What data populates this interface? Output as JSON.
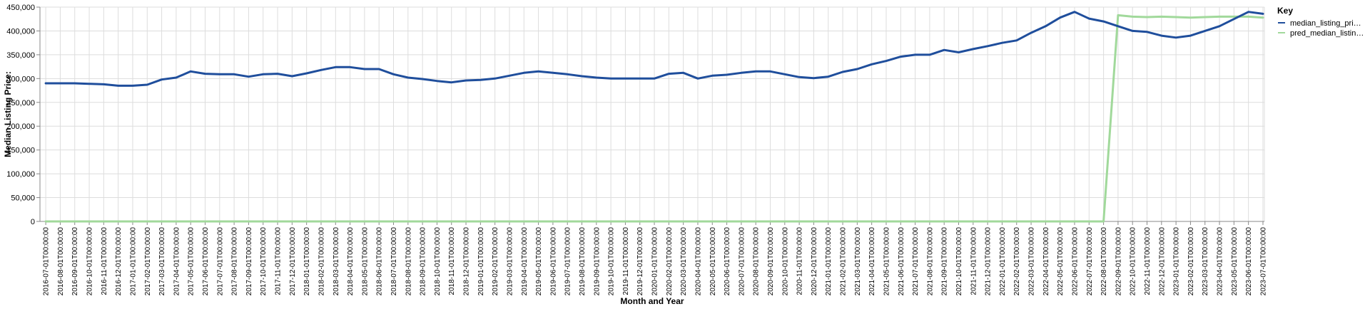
{
  "chart_data": {
    "type": "line",
    "xlabel": "Month and Year",
    "ylabel": "Median Listing Price:",
    "ylim": [
      0,
      450000
    ],
    "y_ticks": [
      "0",
      "50,000",
      "100,000",
      "150,000",
      "200,000",
      "250,000",
      "300,000",
      "350,000",
      "400,000",
      "450,000"
    ],
    "x": [
      "2016-07-01T00:00:00",
      "2016-08-01T00:00:00",
      "2016-09-01T00:00:00",
      "2016-10-01T00:00:00",
      "2016-11-01T00:00:00",
      "2016-12-01T00:00:00",
      "2017-01-01T00:00:00",
      "2017-02-01T00:00:00",
      "2017-03-01T00:00:00",
      "2017-04-01T00:00:00",
      "2017-05-01T00:00:00",
      "2017-06-01T00:00:00",
      "2017-07-01T00:00:00",
      "2017-08-01T00:00:00",
      "2017-09-01T00:00:00",
      "2017-10-01T00:00:00",
      "2017-11-01T00:00:00",
      "2017-12-01T00:00:00",
      "2018-01-01T00:00:00",
      "2018-02-01T00:00:00",
      "2018-03-01T00:00:00",
      "2018-04-01T00:00:00",
      "2018-05-01T00:00:00",
      "2018-06-01T00:00:00",
      "2018-07-01T00:00:00",
      "2018-08-01T00:00:00",
      "2018-09-01T00:00:00",
      "2018-10-01T00:00:00",
      "2018-11-01T00:00:00",
      "2018-12-01T00:00:00",
      "2019-01-01T00:00:00",
      "2019-02-01T00:00:00",
      "2019-03-01T00:00:00",
      "2019-04-01T00:00:00",
      "2019-05-01T00:00:00",
      "2019-06-01T00:00:00",
      "2019-07-01T00:00:00",
      "2019-08-01T00:00:00",
      "2019-09-01T00:00:00",
      "2019-10-01T00:00:00",
      "2019-11-01T00:00:00",
      "2019-12-01T00:00:00",
      "2020-01-01T00:00:00",
      "2020-02-01T00:00:00",
      "2020-03-01T00:00:00",
      "2020-04-01T00:00:00",
      "2020-05-01T00:00:00",
      "2020-06-01T00:00:00",
      "2020-07-01T00:00:00",
      "2020-08-01T00:00:00",
      "2020-09-01T00:00:00",
      "2020-10-01T00:00:00",
      "2020-11-01T00:00:00",
      "2020-12-01T00:00:00",
      "2021-01-01T00:00:00",
      "2021-02-01T00:00:00",
      "2021-03-01T00:00:00",
      "2021-04-01T00:00:00",
      "2021-05-01T00:00:00",
      "2021-06-01T00:00:00",
      "2021-07-01T00:00:00",
      "2021-08-01T00:00:00",
      "2021-09-01T00:00:00",
      "2021-10-01T00:00:00",
      "2021-11-01T00:00:00",
      "2021-12-01T00:00:00",
      "2022-01-01T00:00:00",
      "2022-02-01T00:00:00",
      "2022-03-01T00:00:00",
      "2022-04-01T00:00:00",
      "2022-05-01T00:00:00",
      "2022-06-01T00:00:00",
      "2022-07-01T00:00:00",
      "2022-08-01T00:00:00",
      "2022-09-01T00:00:00",
      "2022-10-01T00:00:00",
      "2022-11-01T00:00:00",
      "2022-12-01T00:00:00",
      "2023-01-01T00:00:00",
      "2023-02-01T00:00:00",
      "2023-03-01T00:00:00",
      "2023-04-01T00:00:00",
      "2023-05-01T00:00:00",
      "2023-06-01T00:00:00",
      "2023-07-01T00:00:00"
    ],
    "series": [
      {
        "name": "median_listing_pri…",
        "color": "#1f4e9c",
        "values": [
          290000,
          290000,
          290000,
          289000,
          288000,
          285000,
          285000,
          287000,
          298000,
          302000,
          315000,
          310000,
          309000,
          309000,
          304000,
          309000,
          310000,
          305000,
          311000,
          318000,
          324000,
          324000,
          320000,
          320000,
          309000,
          302000,
          299000,
          295000,
          292000,
          296000,
          297000,
          300000,
          306000,
          312000,
          315000,
          312000,
          309000,
          305000,
          302000,
          300000,
          300000,
          300000,
          300000,
          310000,
          312000,
          300000,
          306000,
          308000,
          312000,
          315000,
          315000,
          309000,
          303000,
          301000,
          304000,
          314000,
          320000,
          330000,
          337000,
          346000,
          350000,
          350000,
          360000,
          355000,
          362000,
          368000,
          375000,
          380000,
          396000,
          410000,
          428000,
          440000,
          426000,
          420000,
          410000,
          400000,
          398000,
          390000,
          386000,
          390000,
          400000,
          410000,
          425000,
          440000,
          436000
        ]
      },
      {
        "name": "pred_median_listin…",
        "color": "#a1d99b",
        "values": [
          0,
          0,
          0,
          0,
          0,
          0,
          0,
          0,
          0,
          0,
          0,
          0,
          0,
          0,
          0,
          0,
          0,
          0,
          0,
          0,
          0,
          0,
          0,
          0,
          0,
          0,
          0,
          0,
          0,
          0,
          0,
          0,
          0,
          0,
          0,
          0,
          0,
          0,
          0,
          0,
          0,
          0,
          0,
          0,
          0,
          0,
          0,
          0,
          0,
          0,
          0,
          0,
          0,
          0,
          0,
          0,
          0,
          0,
          0,
          0,
          0,
          0,
          0,
          0,
          0,
          0,
          0,
          0,
          0,
          0,
          0,
          0,
          0,
          0,
          433000,
          430000,
          429000,
          430000,
          429000,
          428000,
          429000,
          430000,
          430000,
          430000,
          428000
        ]
      }
    ],
    "legend": {
      "title": "Key",
      "position": "right"
    },
    "grid": true
  }
}
